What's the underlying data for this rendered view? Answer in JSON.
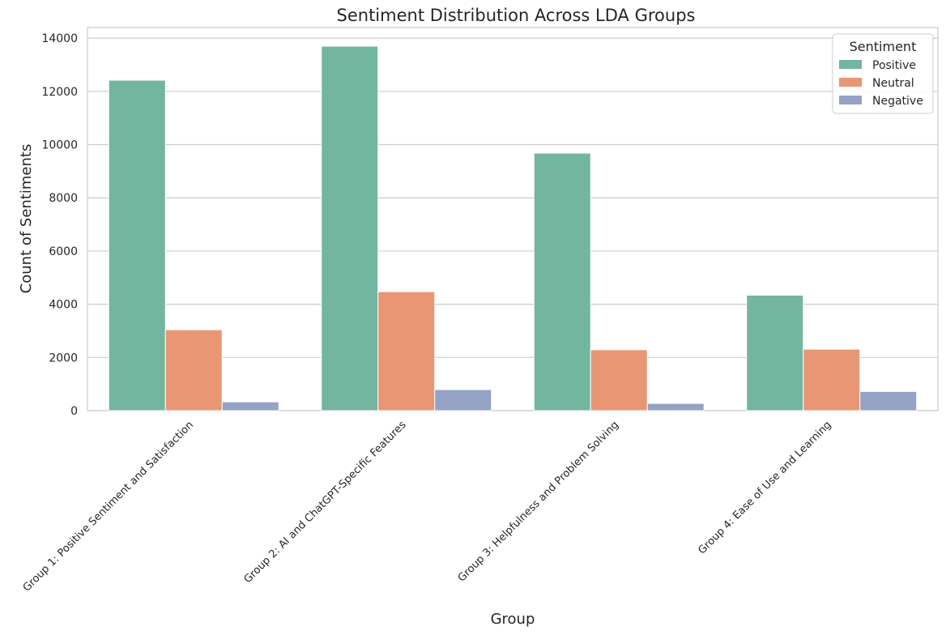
{
  "chart_data": {
    "type": "bar",
    "title": "Sentiment Distribution Across LDA Groups",
    "xlabel": "Group",
    "ylabel": "Count of Sentiments",
    "categories": [
      "Group 1: Positive Sentiment and Satisfaction",
      "Group 2: AI and ChatGPT-Specific Features",
      "Group 3: Helpfulness and Problem Solving",
      "Group 4: Ease of Use and Learning"
    ],
    "series": [
      {
        "name": "Positive",
        "color": "#72b6a0",
        "values": [
          12420,
          13700,
          9680,
          4340
        ]
      },
      {
        "name": "Neutral",
        "color": "#e99674",
        "values": [
          3040,
          4470,
          2290,
          2310
        ]
      },
      {
        "name": "Negative",
        "color": "#94a2c6",
        "values": [
          330,
          790,
          270,
          720
        ]
      }
    ],
    "ylim": [
      0,
      14400
    ],
    "yticks": [
      0,
      2000,
      4000,
      6000,
      8000,
      10000,
      12000,
      14000
    ],
    "grid": true,
    "legend": {
      "title": "Sentiment",
      "position": "top-right"
    }
  }
}
